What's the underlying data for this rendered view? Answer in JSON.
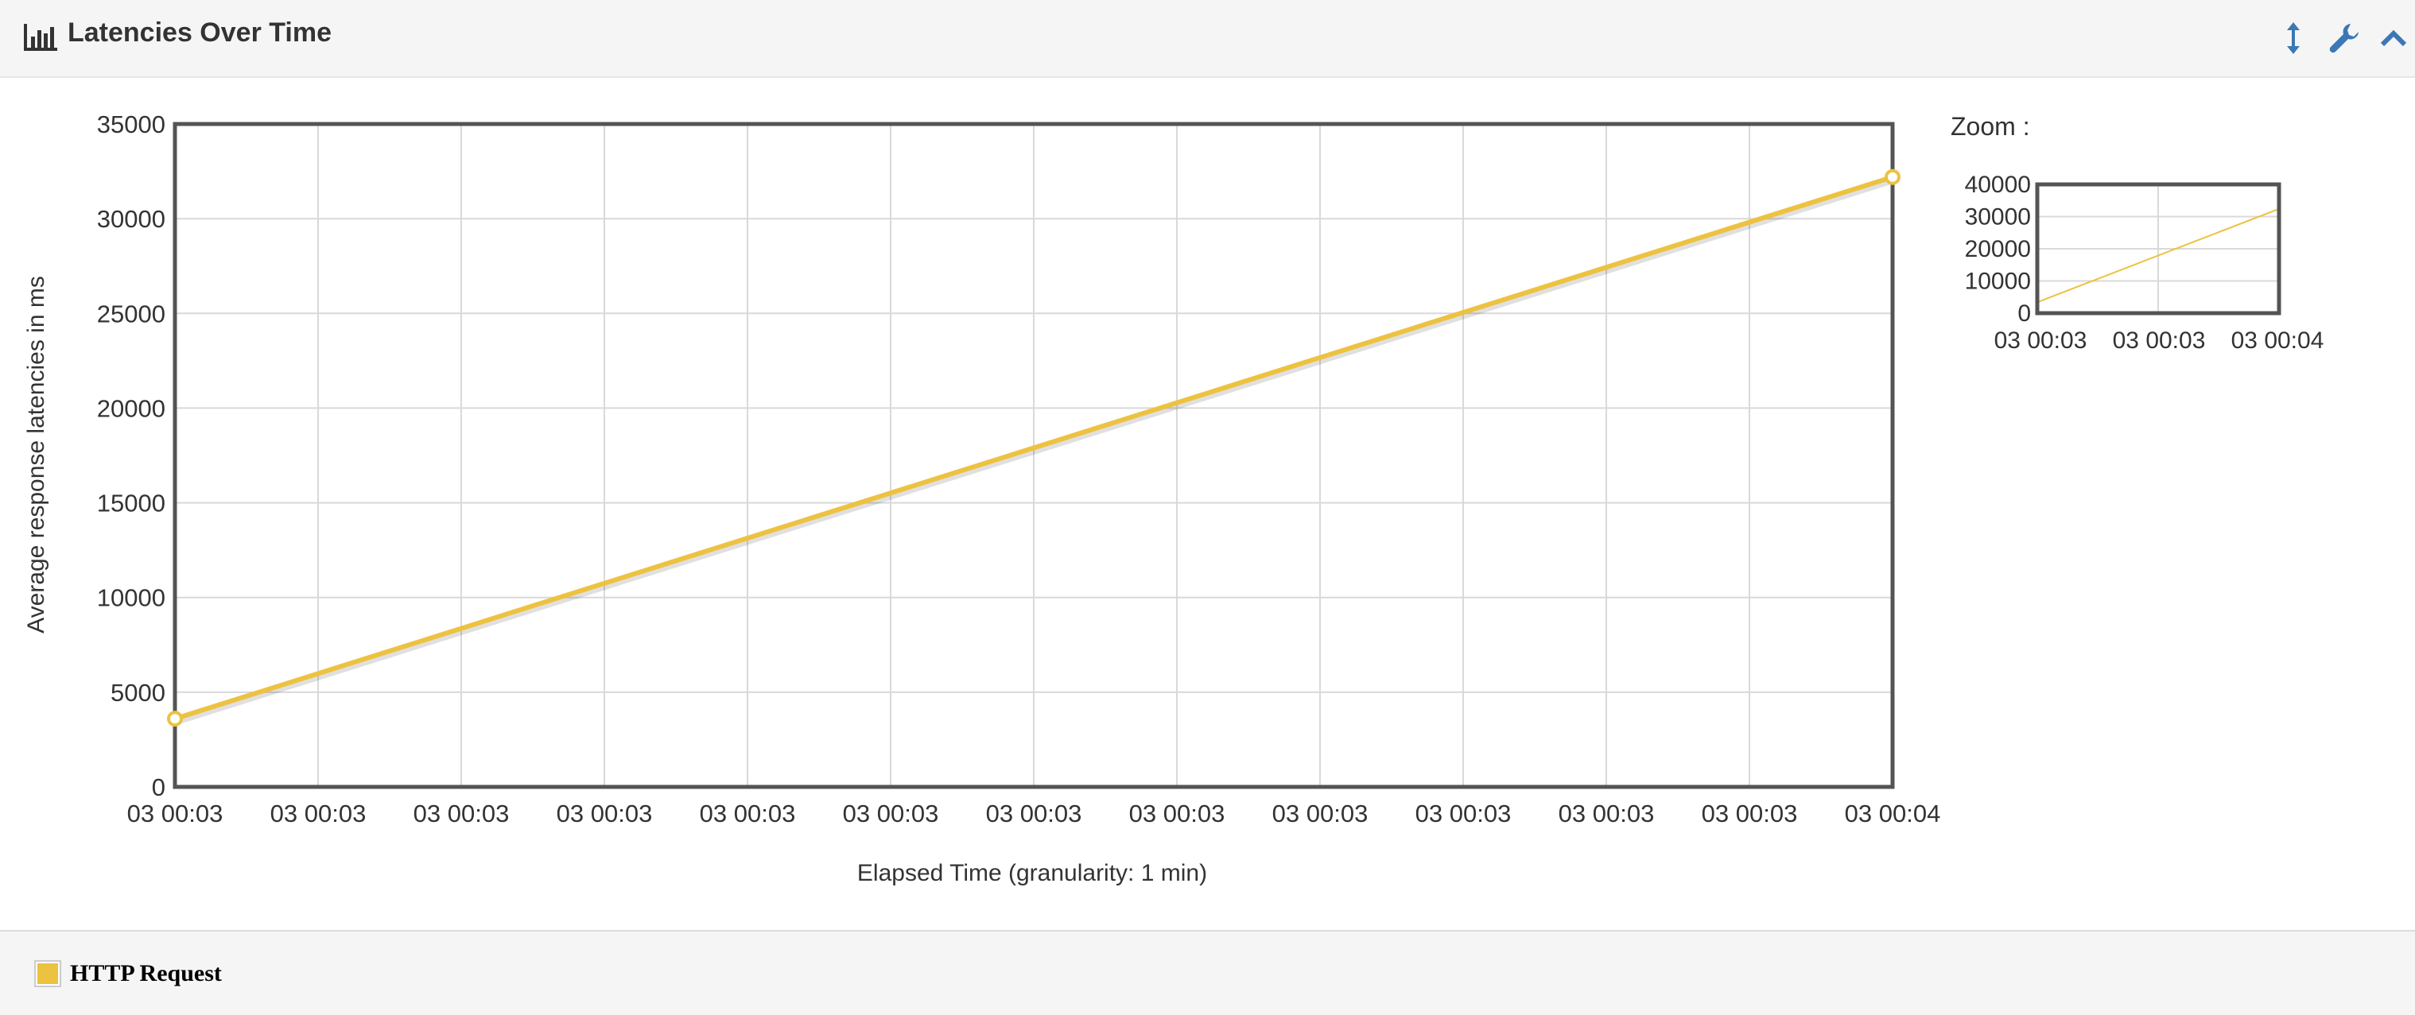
{
  "panel": {
    "title": "Latencies Over Time",
    "title_icon": "bar-chart-icon",
    "header_icons": [
      "vertical-resize-icon",
      "wrench-icon",
      "chevron-up-icon"
    ]
  },
  "chart_data": {
    "type": "line",
    "title": "",
    "xlabel": "Elapsed Time (granularity: 1 min)",
    "ylabel": "Average response latencies in ms",
    "x_tick_labels": [
      "03 00:03",
      "03 00:03",
      "03 00:03",
      "03 00:03",
      "03 00:03",
      "03 00:03",
      "03 00:03",
      "03 00:03",
      "03 00:03",
      "03 00:03",
      "03 00:03",
      "03 00:03",
      "03 00:04"
    ],
    "y_ticks": [
      0,
      5000,
      10000,
      15000,
      20000,
      25000,
      30000,
      35000
    ],
    "ylim": [
      0,
      35000
    ],
    "grid": true,
    "series": [
      {
        "name": "HTTP Request",
        "color": "#edc240",
        "points": [
          {
            "x": "03 00:03",
            "y": 3600
          },
          {
            "x": "03 00:04",
            "y": 32200
          }
        ]
      }
    ],
    "legend": {
      "placement": "bottom-left"
    },
    "zoom": {
      "label": "Zoom :",
      "y_ticks": [
        0,
        10000,
        20000,
        30000,
        40000
      ],
      "ylim": [
        0,
        40000
      ],
      "x_tick_labels": [
        "03 00:03",
        "03 00:03",
        "03 00:04"
      ]
    }
  }
}
